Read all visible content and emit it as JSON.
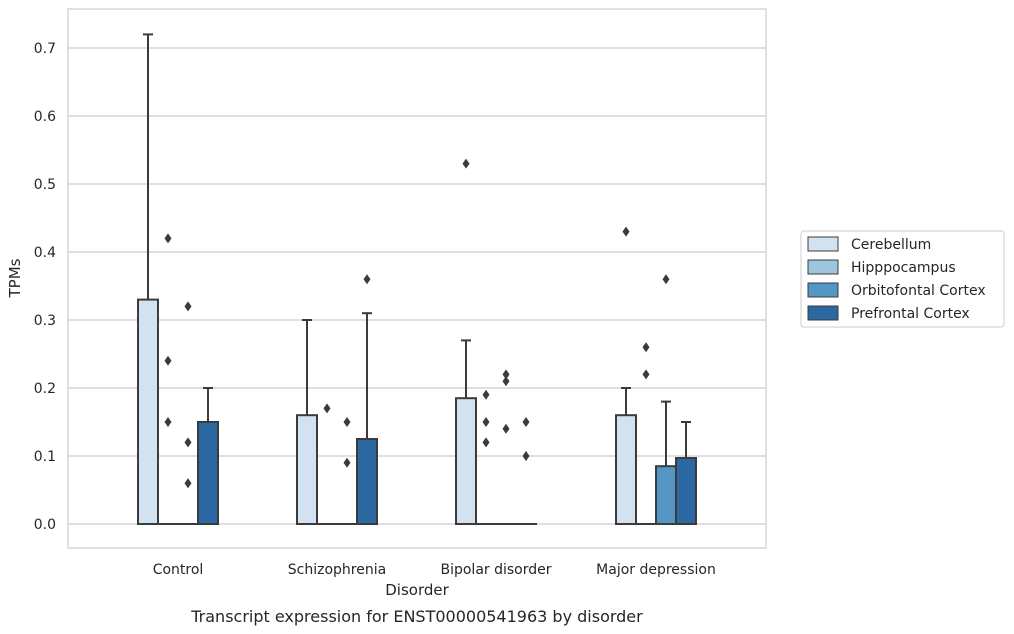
{
  "chart_data": {
    "type": "box",
    "caption": "Transcript expression for ENST00000541963 by disorder",
    "xlabel": "Disorder",
    "ylabel": "TPMs",
    "ylim": [
      -0.035,
      0.76
    ],
    "yticks": [
      0.0,
      0.1,
      0.2,
      0.3,
      0.4,
      0.5,
      0.6,
      0.7
    ],
    "ytick_labels": [
      "0.0",
      "0.1",
      "0.2",
      "0.3",
      "0.4",
      "0.5",
      "0.6",
      "0.7"
    ],
    "grid": "horizontal",
    "legend_position": "right",
    "categories": [
      "Control",
      "Schizophrenia",
      "Bipolar disorder",
      "Major depression"
    ],
    "series": [
      {
        "name": "Cerebellum",
        "color": "#d3e2f0",
        "boxes": [
          {
            "q1": 0.0,
            "median": 0.0,
            "q3": 0.33,
            "whisker_low": 0.0,
            "whisker_high": 0.72,
            "outliers": []
          },
          {
            "q1": 0.0,
            "median": 0.0,
            "q3": 0.16,
            "whisker_low": 0.0,
            "whisker_high": 0.3,
            "outliers": []
          },
          {
            "q1": 0.0,
            "median": 0.0,
            "q3": 0.185,
            "whisker_low": 0.0,
            "whisker_high": 0.27,
            "outliers": [
              0.53
            ]
          },
          {
            "q1": 0.0,
            "median": 0.0,
            "q3": 0.16,
            "whisker_low": 0.0,
            "whisker_high": 0.2,
            "outliers": [
              0.43
            ]
          }
        ]
      },
      {
        "name": "Hipppocampus",
        "color": "#9ec4de",
        "boxes": [
          {
            "q1": 0.0,
            "median": 0.0,
            "q3": 0.0,
            "whisker_low": 0.0,
            "whisker_high": 0.0,
            "outliers": [
              0.42,
              0.24,
              0.15
            ]
          },
          {
            "q1": 0.0,
            "median": 0.0,
            "q3": 0.0,
            "whisker_low": 0.0,
            "whisker_high": 0.0,
            "outliers": [
              0.17
            ]
          },
          {
            "q1": 0.0,
            "median": 0.0,
            "q3": 0.0,
            "whisker_low": 0.0,
            "whisker_high": 0.0,
            "outliers": [
              0.19,
              0.15,
              0.12
            ]
          },
          {
            "q1": 0.0,
            "median": 0.0,
            "q3": 0.0,
            "whisker_low": 0.0,
            "whisker_high": 0.0,
            "outliers": [
              0.26,
              0.22
            ]
          }
        ]
      },
      {
        "name": "Orbitofontal Cortex",
        "color": "#5596c6",
        "boxes": [
          {
            "q1": 0.0,
            "median": 0.0,
            "q3": 0.0,
            "whisker_low": 0.0,
            "whisker_high": 0.0,
            "outliers": [
              0.32,
              0.12,
              0.06
            ]
          },
          {
            "q1": 0.0,
            "median": 0.0,
            "q3": 0.0,
            "whisker_low": 0.0,
            "whisker_high": 0.0,
            "outliers": [
              0.15,
              0.09
            ]
          },
          {
            "q1": 0.0,
            "median": 0.0,
            "q3": 0.0,
            "whisker_low": 0.0,
            "whisker_high": 0.0,
            "outliers": [
              0.22,
              0.21,
              0.14
            ]
          },
          {
            "q1": 0.0,
            "median": 0.0,
            "q3": 0.085,
            "whisker_low": 0.0,
            "whisker_high": 0.18,
            "outliers": [
              0.36
            ]
          }
        ]
      },
      {
        "name": "Prefrontal Cortex",
        "color": "#2c68a2",
        "boxes": [
          {
            "q1": 0.0,
            "median": 0.0,
            "q3": 0.15,
            "whisker_low": 0.0,
            "whisker_high": 0.2,
            "outliers": []
          },
          {
            "q1": 0.0,
            "median": 0.0,
            "q3": 0.125,
            "whisker_low": 0.0,
            "whisker_high": 0.31,
            "outliers": [
              0.36
            ]
          },
          {
            "q1": 0.0,
            "median": 0.0,
            "q3": 0.0,
            "whisker_low": 0.0,
            "whisker_high": 0.0,
            "outliers": [
              0.15,
              0.1
            ]
          },
          {
            "q1": 0.0,
            "median": 0.0,
            "q3": 0.097,
            "whisker_low": 0.0,
            "whisker_high": 0.15,
            "outliers": []
          }
        ]
      }
    ]
  },
  "colors": {
    "box_edge": "#3b3b3b",
    "grid": "#cccccc",
    "frame": "#cccccc",
    "text": "#262626"
  }
}
